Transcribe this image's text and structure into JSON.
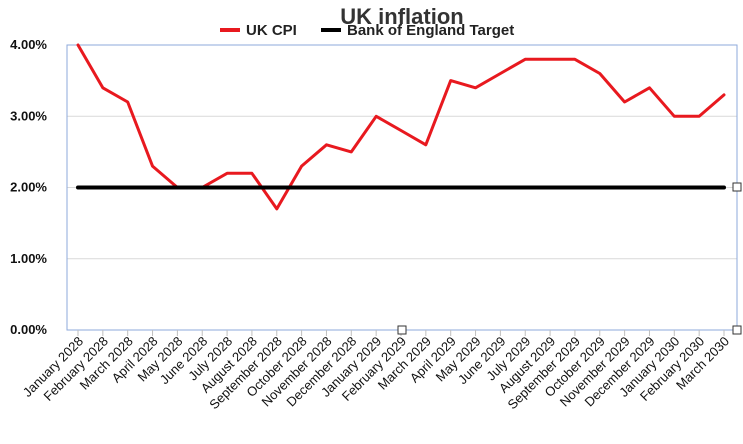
{
  "chart_data": {
    "type": "line",
    "title": "UK inflation",
    "xlabel": "",
    "ylabel": "",
    "categories": [
      "January 2028",
      "February 2028",
      "March 2028",
      "April 2028",
      "May 2028",
      "June 2028",
      "July 2028",
      "August 2028",
      "September 2028",
      "October 2028",
      "November 2028",
      "December 2028",
      "January 2029",
      "February 2029",
      "March 2029",
      "April 2029",
      "May 2029",
      "June 2029",
      "July 2029",
      "August 2029",
      "September 2029",
      "October 2029",
      "November 2029",
      "December 2029",
      "January 2030",
      "February 2030",
      "March 2030"
    ],
    "series": [
      {
        "name": "UK CPI",
        "color": "#e8191f",
        "values": [
          4.0,
          3.4,
          3.2,
          2.3,
          2.0,
          2.0,
          2.2,
          2.2,
          1.7,
          2.3,
          2.6,
          2.5,
          3.0,
          2.8,
          2.6,
          3.5,
          3.4,
          3.6,
          3.8,
          3.8,
          3.8,
          3.6,
          3.2,
          3.4,
          3.0,
          3.0,
          3.3
        ]
      },
      {
        "name": "Bank of England Target",
        "color": "#000000",
        "values": [
          2.0,
          2.0,
          2.0,
          2.0,
          2.0,
          2.0,
          2.0,
          2.0,
          2.0,
          2.0,
          2.0,
          2.0,
          2.0,
          2.0,
          2.0,
          2.0,
          2.0,
          2.0,
          2.0,
          2.0,
          2.0,
          2.0,
          2.0,
          2.0,
          2.0,
          2.0,
          2.0
        ]
      }
    ],
    "yticks": [
      "0.00%",
      "1.00%",
      "2.00%",
      "3.00%",
      "4.00%"
    ],
    "ylim": [
      0,
      4
    ],
    "grid": true,
    "legend_position": "top"
  }
}
